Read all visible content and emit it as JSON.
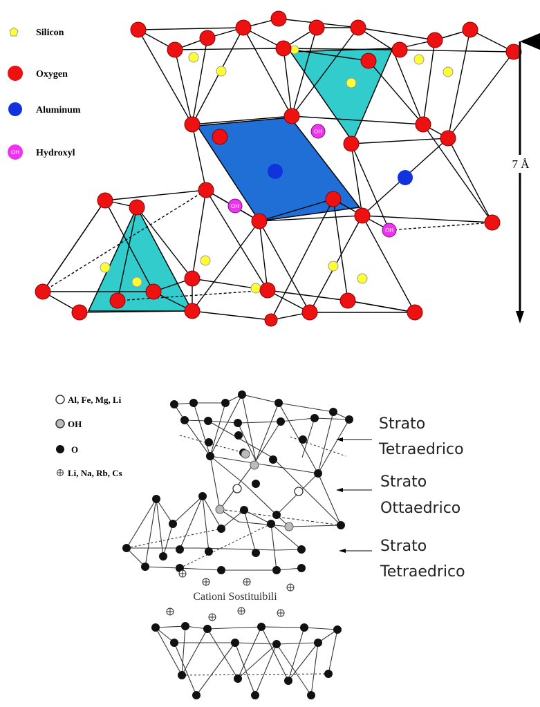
{
  "top_figure": {
    "legend": [
      {
        "label": "Silicon",
        "color": "#ffff33"
      },
      {
        "label": "Oxygen",
        "color": "#ee1111"
      },
      {
        "label": "Aluminum",
        "color": "#1133dd"
      },
      {
        "label": "Hydroxyl",
        "color": "#ee33ee",
        "symbol": "OH"
      }
    ],
    "dimension_label": "7 Å"
  },
  "bottom_figure": {
    "legend": [
      {
        "label": "Al, Fe, Mg, Li",
        "symbol": "open-circle"
      },
      {
        "label": "OH",
        "symbol": "grey-circle"
      },
      {
        "label": "O",
        "symbol": "black-circle"
      },
      {
        "label": "Li, Na, Rb, Cs",
        "symbol": "crossed-circle"
      }
    ],
    "layers": [
      {
        "line1": "Strato",
        "line2": "Tetraedrico"
      },
      {
        "line1": "Strato",
        "line2": "Ottaedrico"
      },
      {
        "line1": "Strato",
        "line2": "Tetraedrico"
      }
    ],
    "cations_label": "Cationi Sostituibili"
  }
}
